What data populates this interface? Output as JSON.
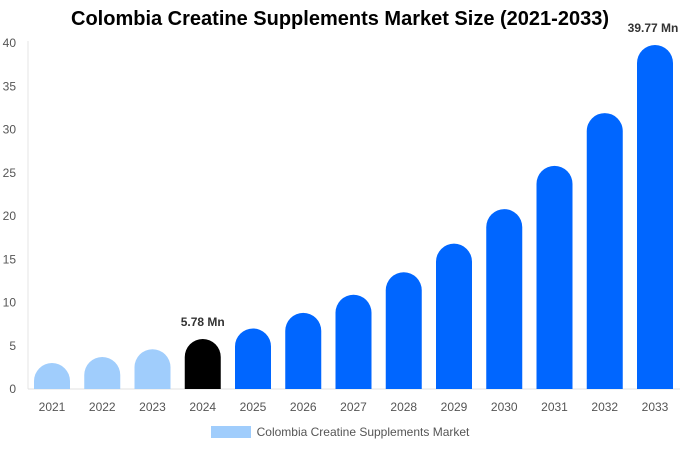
{
  "chart_data": {
    "type": "bar",
    "title": "Colombia Creatine Supplements Market Size (2021-2033)",
    "categories": [
      "2021",
      "2022",
      "2023",
      "2024",
      "2025",
      "2026",
      "2027",
      "2028",
      "2029",
      "2030",
      "2031",
      "2032",
      "2033"
    ],
    "series": [
      {
        "name": "Colombia Creatine Supplements Market",
        "values": [
          3.0,
          3.7,
          4.6,
          5.78,
          7.0,
          8.8,
          10.9,
          13.5,
          16.8,
          20.8,
          25.8,
          31.9,
          39.77
        ]
      }
    ],
    "data_labels": {
      "2024": "5.78 Mn",
      "2033": "39.77 Mn"
    },
    "ylim": [
      0,
      40
    ],
    "yticks": [
      0,
      5,
      10,
      15,
      20,
      25,
      30,
      35,
      40
    ],
    "grid": false,
    "legend": "bottom",
    "colors": {
      "historical": "#a0cdfc",
      "current": "#000000",
      "forecast": "#0066ff"
    }
  }
}
